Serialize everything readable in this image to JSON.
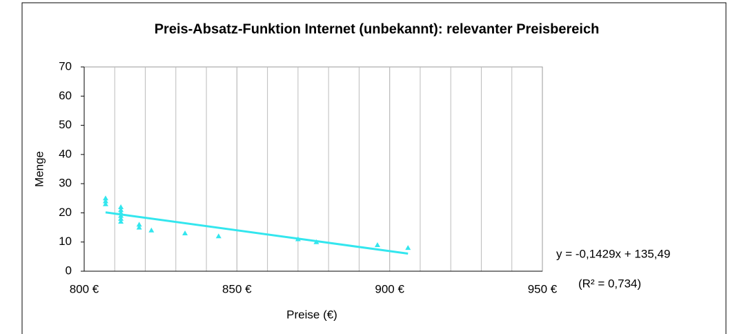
{
  "chart_data": {
    "type": "scatter",
    "title": "Preis-Absatz-Funktion Internet (unbekannt): relevanter Preisbereich",
    "x_label": "Preise (€)",
    "y_label": "Menge",
    "x": [
      807,
      807,
      807,
      812,
      812,
      812,
      812,
      812,
      812,
      818,
      818,
      822,
      833,
      844,
      870,
      876,
      896,
      906
    ],
    "values": [
      25,
      24,
      23,
      22,
      21,
      20,
      19,
      18,
      17,
      16,
      15,
      14,
      13,
      12,
      11,
      10,
      9,
      8
    ],
    "color": "#33e6ee",
    "trendline": {
      "x": [
        807,
        906
      ],
      "values": [
        20.17,
        6.02
      ],
      "color": "#33e6ee"
    },
    "equation": "y = -0,1429x + 135,49",
    "r_squared": "(R² = 0,734)",
    "xlim": [
      800,
      950
    ],
    "ylim": [
      0,
      70
    ],
    "xticks": [
      {
        "value": 800,
        "label": "800 €"
      },
      {
        "value": 850,
        "label": "850 €"
      },
      {
        "value": 900,
        "label": "900 €"
      },
      {
        "value": 950,
        "label": "950 €"
      }
    ],
    "yticks": [
      0,
      10,
      20,
      30,
      40,
      50,
      60,
      70
    ],
    "xgrid": [
      810,
      820,
      830,
      840,
      850,
      860,
      870,
      880,
      890,
      900,
      910,
      920,
      930,
      940
    ]
  }
}
